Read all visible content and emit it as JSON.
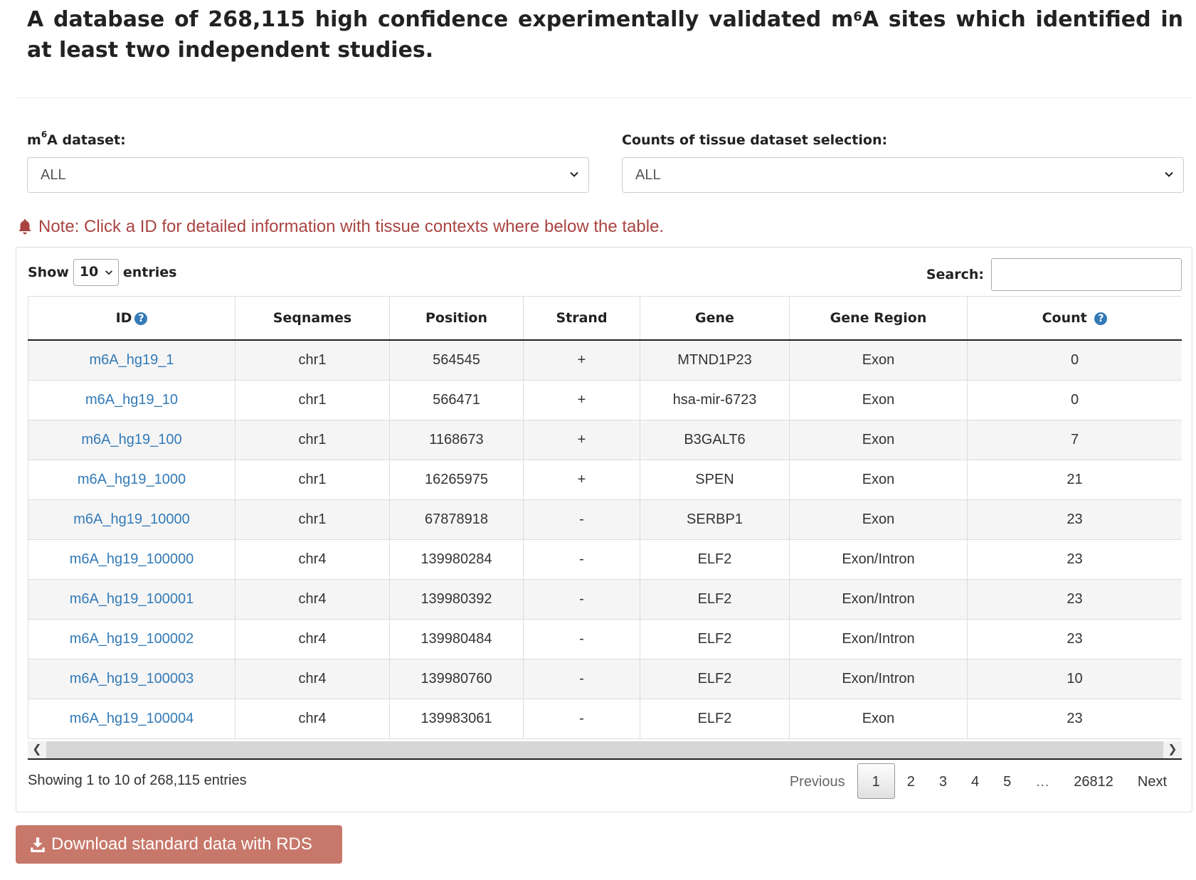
{
  "heading": {
    "pre": "A database of 268,115 high confidence experimentally validated m",
    "sup": "6",
    "post": "A sites which identified in at least two independent studies."
  },
  "filters": {
    "dataset": {
      "label_pre": "m",
      "label_sup": "6",
      "label_post": "A dataset:",
      "value": "ALL"
    },
    "tissue": {
      "label": "Counts of tissue dataset selection:",
      "value": "ALL"
    }
  },
  "note": "Note: Click a ID for detailed information with tissue contexts where below the table.",
  "table": {
    "show_label": "Show",
    "entries_label": "entries",
    "length_value": "10",
    "search_label": "Search:",
    "search_value": "",
    "columns": [
      "ID",
      "Seqnames",
      "Position",
      "Strand",
      "Gene",
      "Gene Region",
      "Count"
    ],
    "rows": [
      [
        "m6A_hg19_1",
        "chr1",
        "564545",
        "+",
        "MTND1P23",
        "Exon",
        "0"
      ],
      [
        "m6A_hg19_10",
        "chr1",
        "566471",
        "+",
        "hsa-mir-6723",
        "Exon",
        "0"
      ],
      [
        "m6A_hg19_100",
        "chr1",
        "1168673",
        "+",
        "B3GALT6",
        "Exon",
        "7"
      ],
      [
        "m6A_hg19_1000",
        "chr1",
        "16265975",
        "+",
        "SPEN",
        "Exon",
        "21"
      ],
      [
        "m6A_hg19_10000",
        "chr1",
        "67878918",
        "-",
        "SERBP1",
        "Exon",
        "23"
      ],
      [
        "m6A_hg19_100000",
        "chr4",
        "139980284",
        "-",
        "ELF2",
        "Exon/Intron",
        "23"
      ],
      [
        "m6A_hg19_100001",
        "chr4",
        "139980392",
        "-",
        "ELF2",
        "Exon/Intron",
        "23"
      ],
      [
        "m6A_hg19_100002",
        "chr4",
        "139980484",
        "-",
        "ELF2",
        "Exon/Intron",
        "23"
      ],
      [
        "m6A_hg19_100003",
        "chr4",
        "139980760",
        "-",
        "ELF2",
        "Exon/Intron",
        "10"
      ],
      [
        "m6A_hg19_100004",
        "chr4",
        "139983061",
        "-",
        "ELF2",
        "Exon",
        "23"
      ]
    ],
    "info": "Showing 1 to 10 of 268,115 entries"
  },
  "pagination": {
    "previous": "Previous",
    "pages": [
      "1",
      "2",
      "3",
      "4",
      "5",
      "…",
      "26812"
    ],
    "current": "1",
    "next": "Next"
  },
  "download_button": "Download standard data with RDS",
  "colors": {
    "link": "#337ab7",
    "note": "#a94442",
    "download_bg": "#c7786a"
  }
}
